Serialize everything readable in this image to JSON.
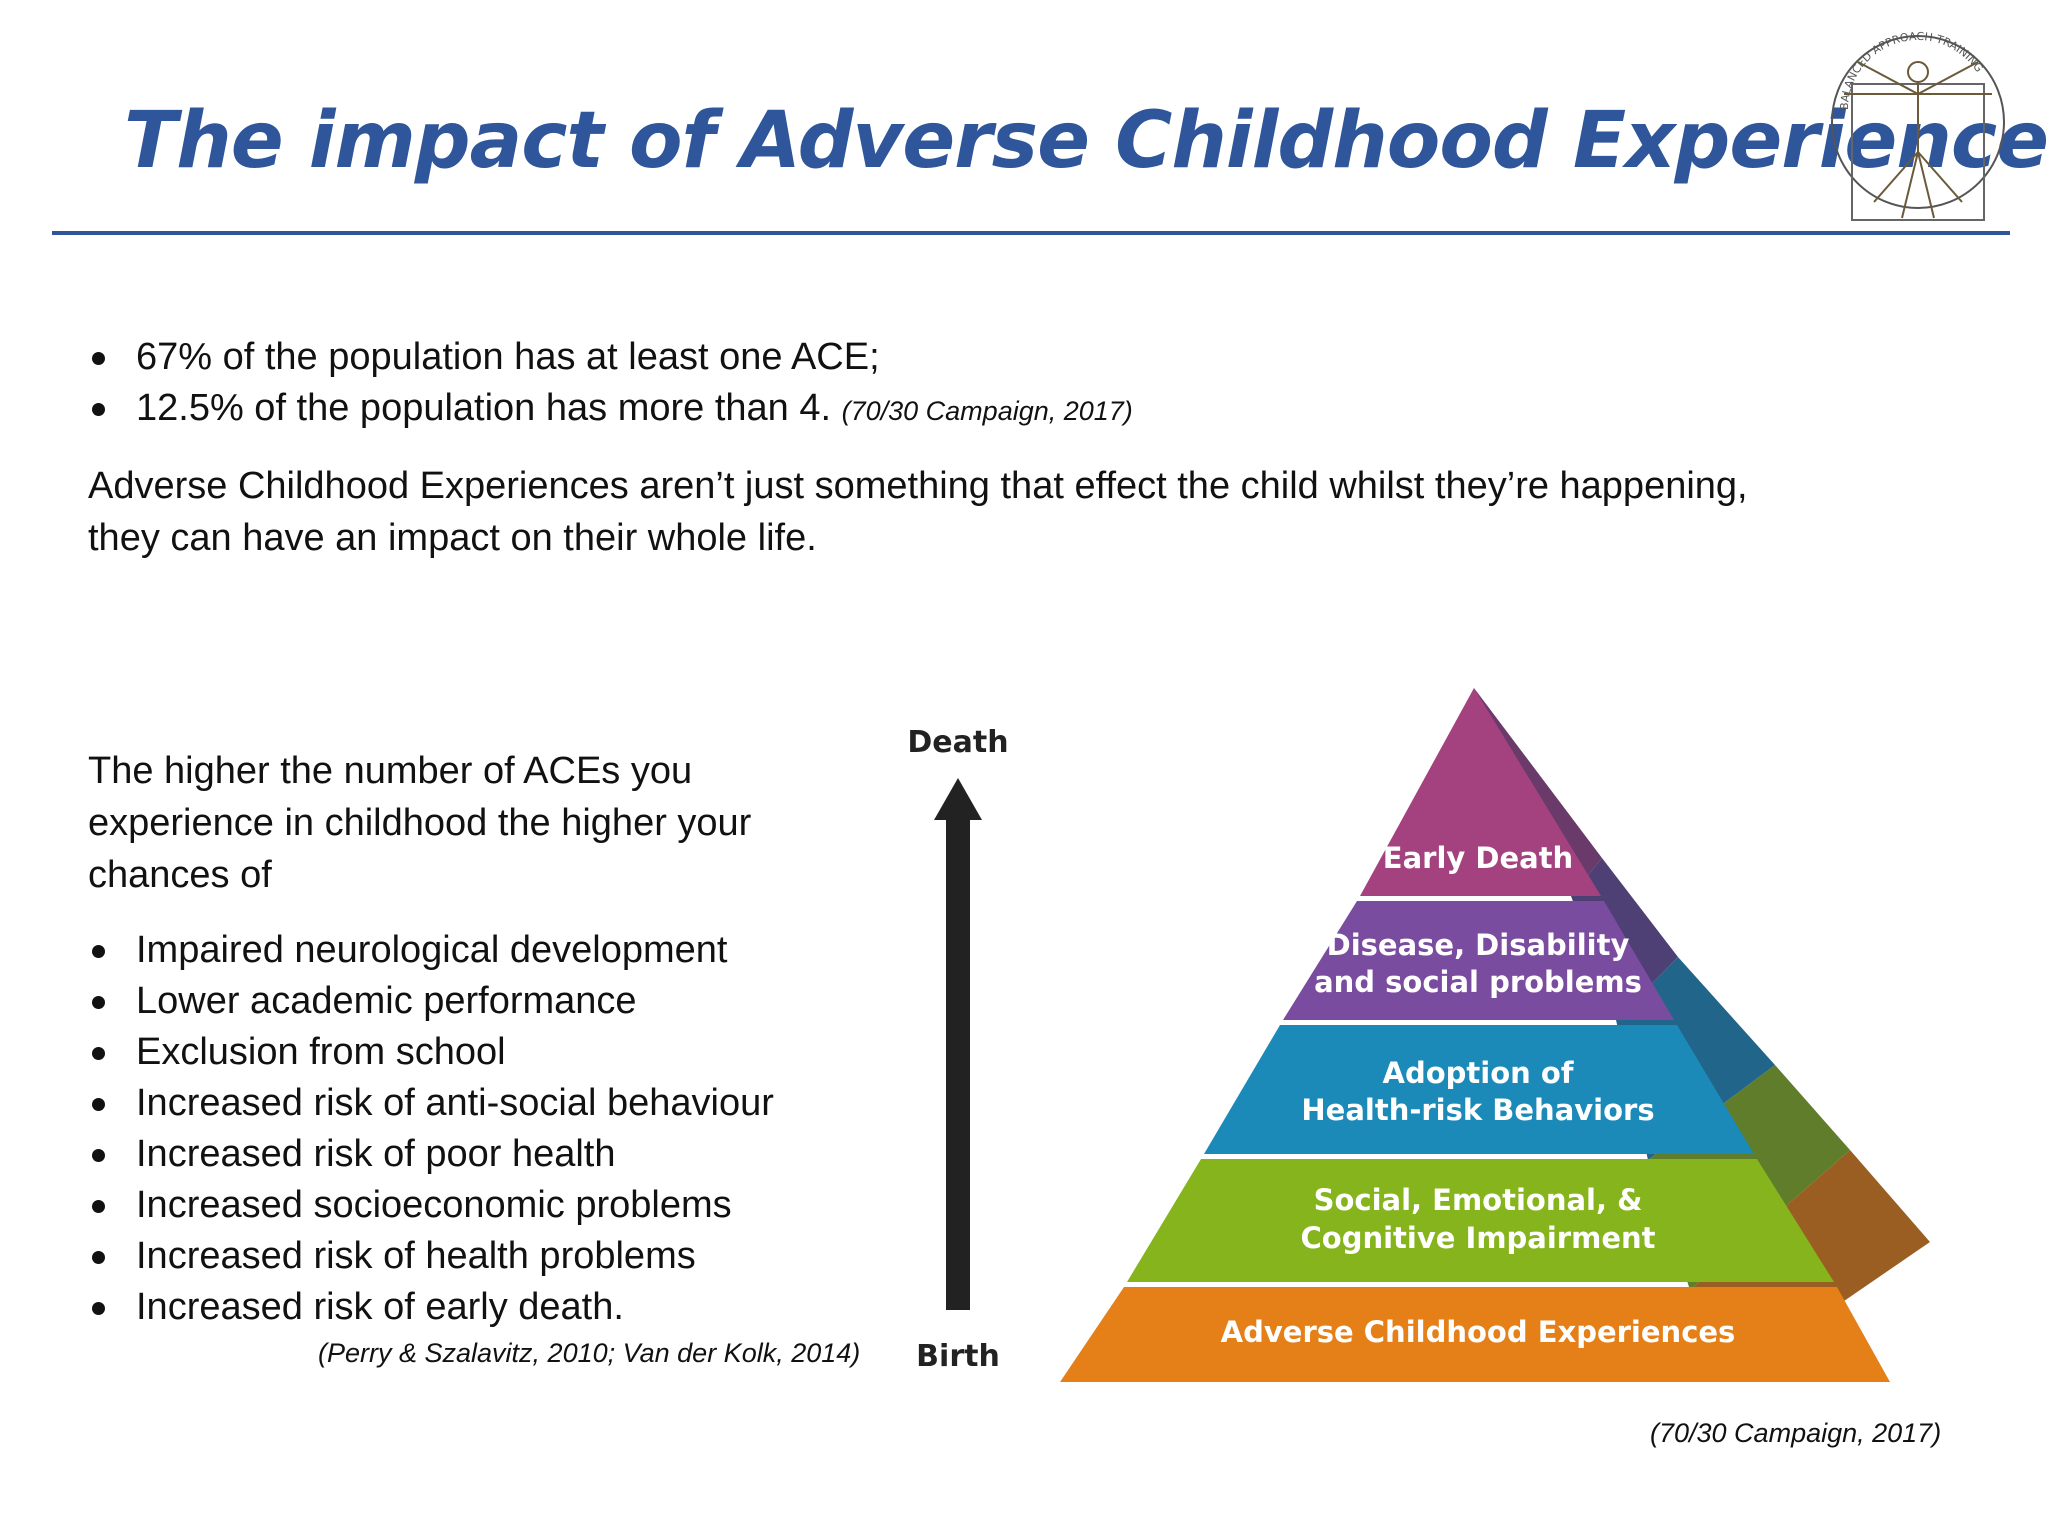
{
  "title": "The impact of Adverse Childhood Experiences",
  "logo": {
    "name": "vitruvian-man-logo",
    "ring_text": "BALANCED APPROACH TRAINING"
  },
  "intro_bullets": [
    {
      "text": "67% of the population has at least one ACE;",
      "cite": ""
    },
    {
      "text": "12.5%  of the population has more than 4.",
      "cite": "(70/30 Campaign, 2017)"
    }
  ],
  "intro_paragraph": {
    "line1": "Adverse Childhood Experiences aren’t just something that effect the child whilst they’re happening,",
    "line2": "they can have an impact on their whole life."
  },
  "outcomes_intro": {
    "line1": "The higher the number of ACEs you",
    "line2": "experience in childhood the higher your",
    "line3": "chances of"
  },
  "outcomes": [
    "Impaired neurological development",
    "Lower academic performance",
    "Exclusion from school",
    "Increased risk of anti-social behaviour",
    "Increased risk of poor health",
    "Increased socioeconomic  problems",
    "Increased risk of health problems",
    "Increased risk of early death."
  ],
  "outcomes_citation": "(Perry & Szalavitz, 2010; Van der Kolk, 2014)",
  "diagram": {
    "arrow_top_label": "Death",
    "arrow_bottom_label": "Birth",
    "tiers_top_to_bottom": [
      {
        "lines": [
          "Early Death"
        ],
        "color": "#a4417f"
      },
      {
        "lines": [
          "Disease, Disability",
          "and social problems"
        ],
        "color": "#7a4c9f"
      },
      {
        "lines": [
          "Adoption of",
          "Health-risk Behaviors"
        ],
        "color": "#1b8ab8"
      },
      {
        "lines": [
          "Social, Emotional, &",
          "Cognitive Impairment"
        ],
        "color": "#86b41c"
      },
      {
        "lines": [
          "Adverse Childhood Experiences"
        ],
        "color": "#e58018"
      }
    ],
    "citation": "(70/30 Campaign, 2017)"
  }
}
